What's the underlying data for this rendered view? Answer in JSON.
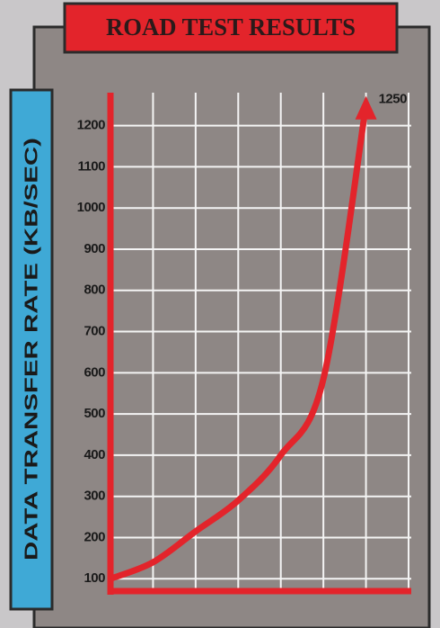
{
  "chart_data": {
    "type": "line",
    "title": "ROAD TEST RESULTS",
    "y_label": "DATA TRANSFER RATE (KB/SEC)",
    "categories": [
      null,
      null,
      null,
      null,
      null,
      null,
      null,
      null
    ],
    "values": [
      100,
      140,
      215,
      290,
      400,
      585,
      1250,
      null
    ],
    "color": "#e3242b",
    "ylim": [
      70,
      1280
    ],
    "yticks": [
      100,
      200,
      300,
      400,
      500,
      600,
      700,
      800,
      900,
      1000,
      1100,
      1200
    ],
    "grid": true
  }
}
